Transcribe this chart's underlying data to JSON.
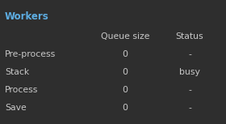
{
  "title": "Workers",
  "background_color": "#2e2e2e",
  "title_color": "#5dade2",
  "header_color": "#c8c8c8",
  "module_color": "#c8c8c8",
  "value_color": "#c8c8c8",
  "status_color": "#c8c8c8",
  "columns": [
    "Queue size",
    "Status"
  ],
  "rows": [
    {
      "module": "Pre-process",
      "queue": "0",
      "status": "-"
    },
    {
      "module": "Stack",
      "queue": "0",
      "status": "busy"
    },
    {
      "module": "Process",
      "queue": "0",
      "status": "-"
    },
    {
      "module": "Save",
      "queue": "0",
      "status": "-"
    }
  ],
  "title_fontsize": 8.5,
  "header_fontsize": 7.8,
  "cell_fontsize": 7.8,
  "fig_width": 2.8,
  "fig_height": 1.53,
  "dpi": 100
}
